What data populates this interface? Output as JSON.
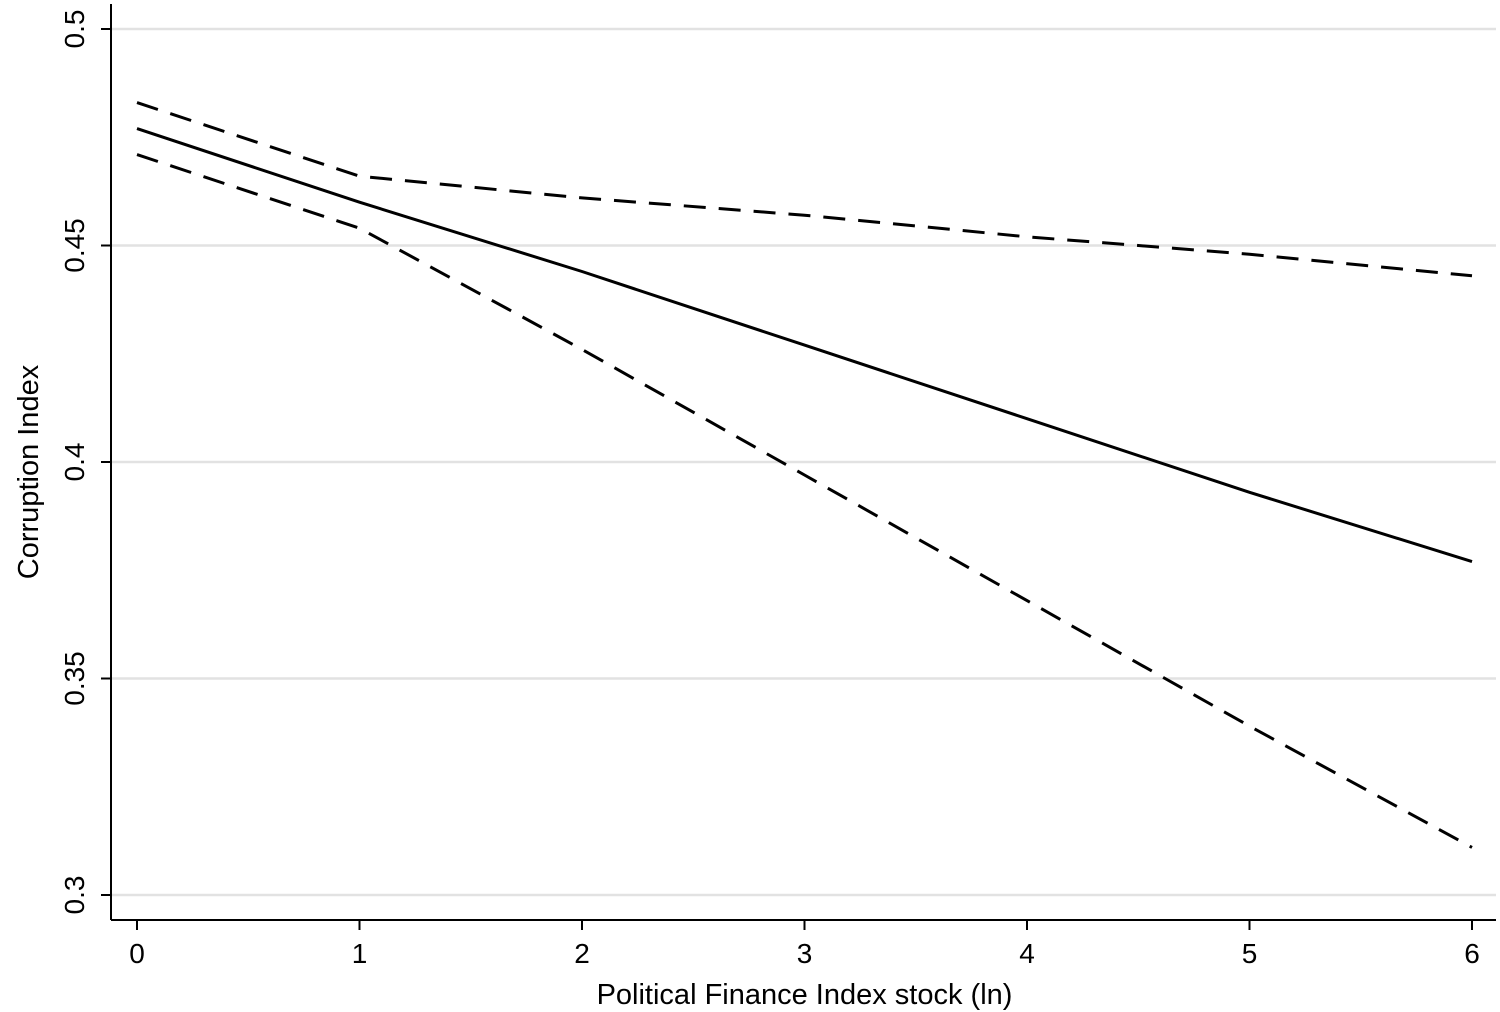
{
  "chart_data": {
    "type": "line",
    "title": "",
    "xlabel": "Political Finance Index stock (ln)",
    "ylabel": "Corruption Index",
    "xlim": [
      0,
      6
    ],
    "ylim": [
      0.3,
      0.5
    ],
    "x_ticks": [
      0,
      1,
      2,
      3,
      4,
      5,
      6
    ],
    "x_tick_labels": [
      "0",
      "1",
      "2",
      "3",
      "4",
      "5",
      "6"
    ],
    "y_ticks": [
      0.3,
      0.35,
      0.4,
      0.45,
      0.5
    ],
    "y_tick_labels": [
      "0.3",
      "0.35",
      "0.4",
      "0.45",
      "0.5"
    ],
    "grid": "horizontal",
    "legend": "none",
    "series": [
      {
        "style": "solid",
        "x": [
          0,
          1,
          2,
          3,
          4,
          5,
          6
        ],
        "values": [
          0.477,
          0.46,
          0.444,
          0.427,
          0.41,
          0.393,
          0.377
        ]
      },
      {
        "style": "dashed",
        "x": [
          0,
          1,
          2,
          3,
          4,
          5,
          6
        ],
        "values": [
          0.483,
          0.466,
          0.461,
          0.457,
          0.452,
          0.448,
          0.443
        ]
      },
      {
        "style": "dashed",
        "x": [
          0,
          1,
          2,
          3,
          4,
          5,
          6
        ],
        "values": [
          0.471,
          0.454,
          0.426,
          0.397,
          0.368,
          0.339,
          0.311
        ]
      }
    ],
    "colors": {
      "line": "#000000",
      "grid": "#e2e2e2",
      "background": "#ffffff"
    }
  }
}
